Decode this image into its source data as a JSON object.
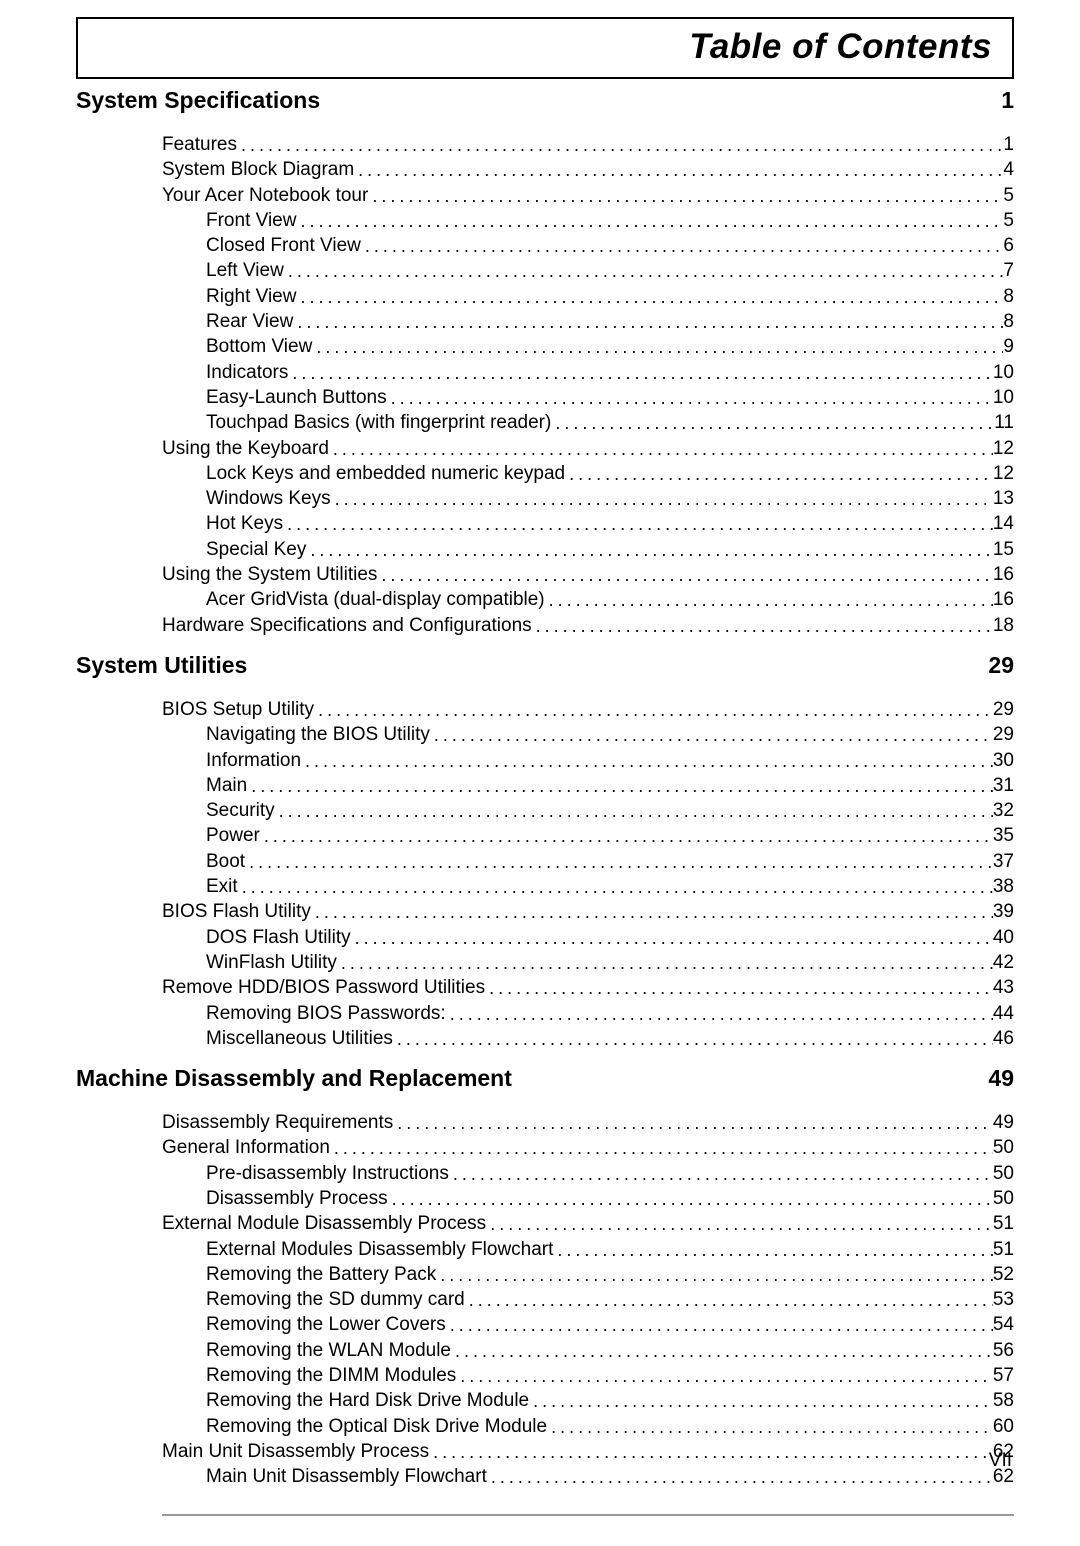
{
  "page_title": "Table of Contents",
  "page_number": "VII",
  "sections": [
    {
      "title": "System Specifications",
      "page": "1",
      "entries": [
        {
          "indent": 1,
          "label": "Features",
          "page": "1"
        },
        {
          "indent": 1,
          "label": "System Block Diagram",
          "page": "4"
        },
        {
          "indent": 1,
          "label": "Your Acer Notebook tour",
          "page": "5"
        },
        {
          "indent": 2,
          "label": "Front View",
          "page": "5"
        },
        {
          "indent": 2,
          "label": "Closed Front View",
          "page": "6"
        },
        {
          "indent": 2,
          "label": "Left View",
          "page": "7"
        },
        {
          "indent": 2,
          "label": "Right View",
          "page": "8"
        },
        {
          "indent": 2,
          "label": "Rear View",
          "page": "8"
        },
        {
          "indent": 2,
          "label": "Bottom View",
          "page": "9"
        },
        {
          "indent": 2,
          "label": "Indicators",
          "page": "10"
        },
        {
          "indent": 2,
          "label": "Easy-Launch Buttons",
          "page": "10"
        },
        {
          "indent": 2,
          "label": "Touchpad Basics (with fingerprint reader)",
          "page": "11"
        },
        {
          "indent": 1,
          "label": "Using the Keyboard",
          "page": "12"
        },
        {
          "indent": 2,
          "label": "Lock Keys and embedded numeric keypad",
          "page": "12"
        },
        {
          "indent": 2,
          "label": "Windows Keys",
          "page": "13"
        },
        {
          "indent": 2,
          "label": "Hot Keys",
          "page": "14"
        },
        {
          "indent": 2,
          "label": "Special Key",
          "page": "15"
        },
        {
          "indent": 1,
          "label": "Using the System Utilities",
          "page": "16"
        },
        {
          "indent": 2,
          "label": "Acer GridVista (dual-display compatible)",
          "page": "16"
        },
        {
          "indent": 1,
          "label": "Hardware Specifications and Configurations",
          "page": "18"
        }
      ]
    },
    {
      "title": "System Utilities",
      "page": "29",
      "entries": [
        {
          "indent": 1,
          "label": "BIOS Setup Utility",
          "page": "29"
        },
        {
          "indent": 2,
          "label": "Navigating the BIOS Utility",
          "page": "29"
        },
        {
          "indent": 2,
          "label": "Information",
          "page": "30"
        },
        {
          "indent": 2,
          "label": "Main",
          "page": "31"
        },
        {
          "indent": 2,
          "label": "Security",
          "page": "32"
        },
        {
          "indent": 2,
          "label": "Power",
          "page": "35"
        },
        {
          "indent": 2,
          "label": "Boot",
          "page": "37"
        },
        {
          "indent": 2,
          "label": "Exit",
          "page": "38"
        },
        {
          "indent": 1,
          "label": "BIOS Flash Utility",
          "page": "39"
        },
        {
          "indent": 2,
          "label": "DOS Flash Utility",
          "page": "40"
        },
        {
          "indent": 2,
          "label": "WinFlash Utility",
          "page": "42"
        },
        {
          "indent": 1,
          "label": "Remove HDD/BIOS Password Utilities",
          "page": "43"
        },
        {
          "indent": 2,
          "label": "Removing BIOS Passwords:",
          "page": "44"
        },
        {
          "indent": 2,
          "label": "Miscellaneous Utilities",
          "page": "46"
        }
      ]
    },
    {
      "title": "Machine Disassembly and Replacement",
      "page": "49",
      "entries": [
        {
          "indent": 1,
          "label": "Disassembly Requirements",
          "page": "49"
        },
        {
          "indent": 1,
          "label": "General Information",
          "page": "50"
        },
        {
          "indent": 2,
          "label": "Pre-disassembly Instructions",
          "page": "50"
        },
        {
          "indent": 2,
          "label": "Disassembly Process",
          "page": "50"
        },
        {
          "indent": 1,
          "label": "External Module Disassembly Process",
          "page": "51"
        },
        {
          "indent": 2,
          "label": "External Modules Disassembly Flowchart",
          "page": "51"
        },
        {
          "indent": 2,
          "label": "Removing the Battery Pack",
          "page": "52"
        },
        {
          "indent": 2,
          "label": "Removing the SD dummy card",
          "page": "53"
        },
        {
          "indent": 2,
          "label": "Removing the Lower Covers",
          "page": "54"
        },
        {
          "indent": 2,
          "label": "Removing the WLAN Module",
          "page": "56"
        },
        {
          "indent": 2,
          "label": "Removing the DIMM Modules",
          "page": "57"
        },
        {
          "indent": 2,
          "label": "Removing the Hard Disk Drive Module",
          "page": "58"
        },
        {
          "indent": 2,
          "label": "Removing the Optical Disk Drive Module",
          "page": "60"
        },
        {
          "indent": 1,
          "label": "Main Unit Disassembly Process",
          "page": "62"
        },
        {
          "indent": 2,
          "label": "Main Unit Disassembly Flowchart",
          "page": "62"
        }
      ]
    }
  ]
}
